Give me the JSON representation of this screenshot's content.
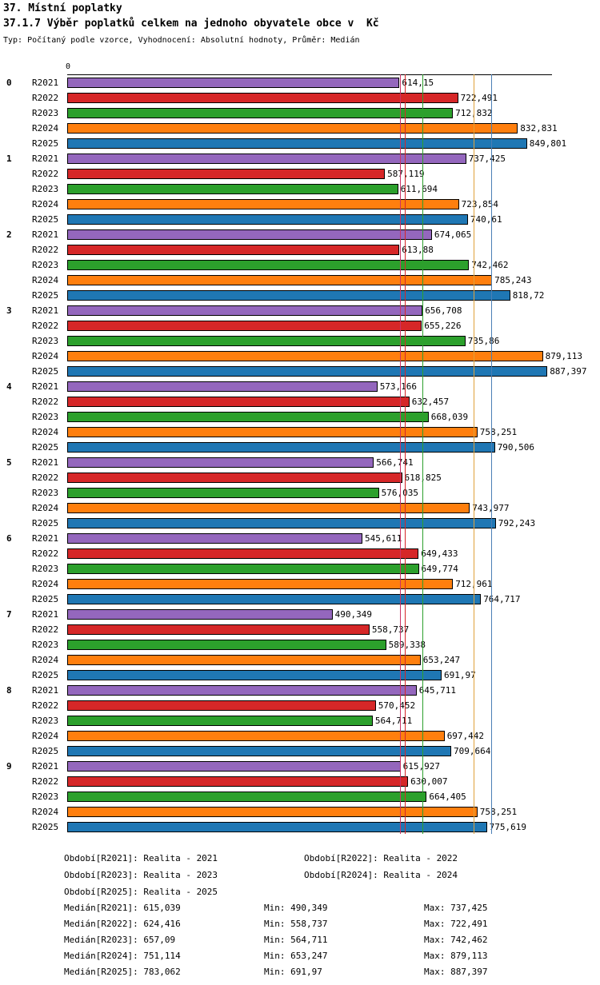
{
  "title": "37. Místní poplatky",
  "subtitle": "37.1.7 Výběr poplatků celkem na jednoho obyvatele obce v  Kč",
  "meta": "Typ: Počítaný podle vzorce, Vyhodnocení: Absolutní hodnoty, Průměr: Medián",
  "axis": {
    "zero_label": "0"
  },
  "chart_data": {
    "type": "bar",
    "orientation": "horizontal",
    "xlim": [
      0,
      896
    ],
    "grid": false,
    "categories": [
      "0",
      "1",
      "2",
      "3",
      "4",
      "5",
      "6",
      "7",
      "8",
      "9"
    ],
    "series": [
      {
        "name": "R2021",
        "color": "#9467bd",
        "values": [
          614.15,
          737.425,
          674.065,
          656.708,
          573.166,
          566.741,
          545.611,
          490.349,
          645.711,
          615.927
        ],
        "labels": [
          "614,15",
          "737,425",
          "674,065",
          "656,708",
          "573,166",
          "566,741",
          "545,611",
          "490,349",
          "645,711",
          "615,927"
        ]
      },
      {
        "name": "R2022",
        "color": "#d62728",
        "values": [
          722.491,
          587.119,
          613.88,
          655.226,
          632.457,
          618.825,
          649.433,
          558.737,
          570.452,
          630.007
        ],
        "labels": [
          "722,491",
          "587,119",
          "613,88",
          "655,226",
          "632,457",
          "618,825",
          "649,433",
          "558,737",
          "570,452",
          "630,007"
        ]
      },
      {
        "name": "R2023",
        "color": "#2ca02c",
        "values": [
          712.832,
          611.694,
          742.462,
          735.86,
          668.039,
          576.035,
          649.774,
          589.338,
          564.711,
          664.405
        ],
        "labels": [
          "712,832",
          "611,694",
          "742,462",
          "735,86",
          "668,039",
          "576,035",
          "649,774",
          "589,338",
          "564,711",
          "664,405"
        ]
      },
      {
        "name": "R2024",
        "color": "#ff7f0e",
        "values": [
          832.831,
          723.854,
          785.243,
          879.113,
          758.251,
          743.977,
          712.961,
          653.247,
          697.442,
          758.251
        ],
        "labels": [
          "832,831",
          "723,854",
          "785,243",
          "879,113",
          "758,251",
          "743,977",
          "712,961",
          "653,247",
          "697,442",
          "758,251"
        ]
      },
      {
        "name": "R2025",
        "color": "#1f77b4",
        "values": [
          849.801,
          740.61,
          818.72,
          887.397,
          790.506,
          792.243,
          764.717,
          691.97,
          709.664,
          775.619
        ],
        "labels": [
          "849,801",
          "740,61",
          "818,72",
          "887,397",
          "790,506",
          "792,243",
          "764,717",
          "691,97",
          "709,664",
          "775,619"
        ]
      }
    ],
    "medians": [
      {
        "series": "R2021",
        "value": 615.039,
        "color": "#cc3366"
      },
      {
        "series": "R2022",
        "value": 624.416,
        "color": "#d62728"
      },
      {
        "series": "R2023",
        "value": 657.09,
        "color": "#2ca02c"
      },
      {
        "series": "R2024",
        "value": 751.114,
        "color": "#dfa13a"
      },
      {
        "series": "R2025",
        "value": 783.062,
        "color": "#4a7fb5"
      }
    ]
  },
  "footer": {
    "periods": [
      "Období[R2021]: Realita - 2021",
      "Období[R2022]: Realita - 2022",
      "Období[R2023]: Realita - 2023",
      "Období[R2024]: Realita - 2024",
      "Období[R2025]: Realita - 2025"
    ],
    "stats": [
      [
        "Medián[R2021]: 615,039",
        "Min: 490,349",
        "Max: 737,425"
      ],
      [
        "Medián[R2022]: 624,416",
        "Min: 558,737",
        "Max: 722,491"
      ],
      [
        "Medián[R2023]: 657,09",
        "Min: 564,711",
        "Max: 742,462"
      ],
      [
        "Medián[R2024]: 751,114",
        "Min: 653,247",
        "Max: 879,113"
      ],
      [
        "Medián[R2025]: 783,062",
        "Min: 691,97",
        "Max: 887,397"
      ]
    ]
  }
}
